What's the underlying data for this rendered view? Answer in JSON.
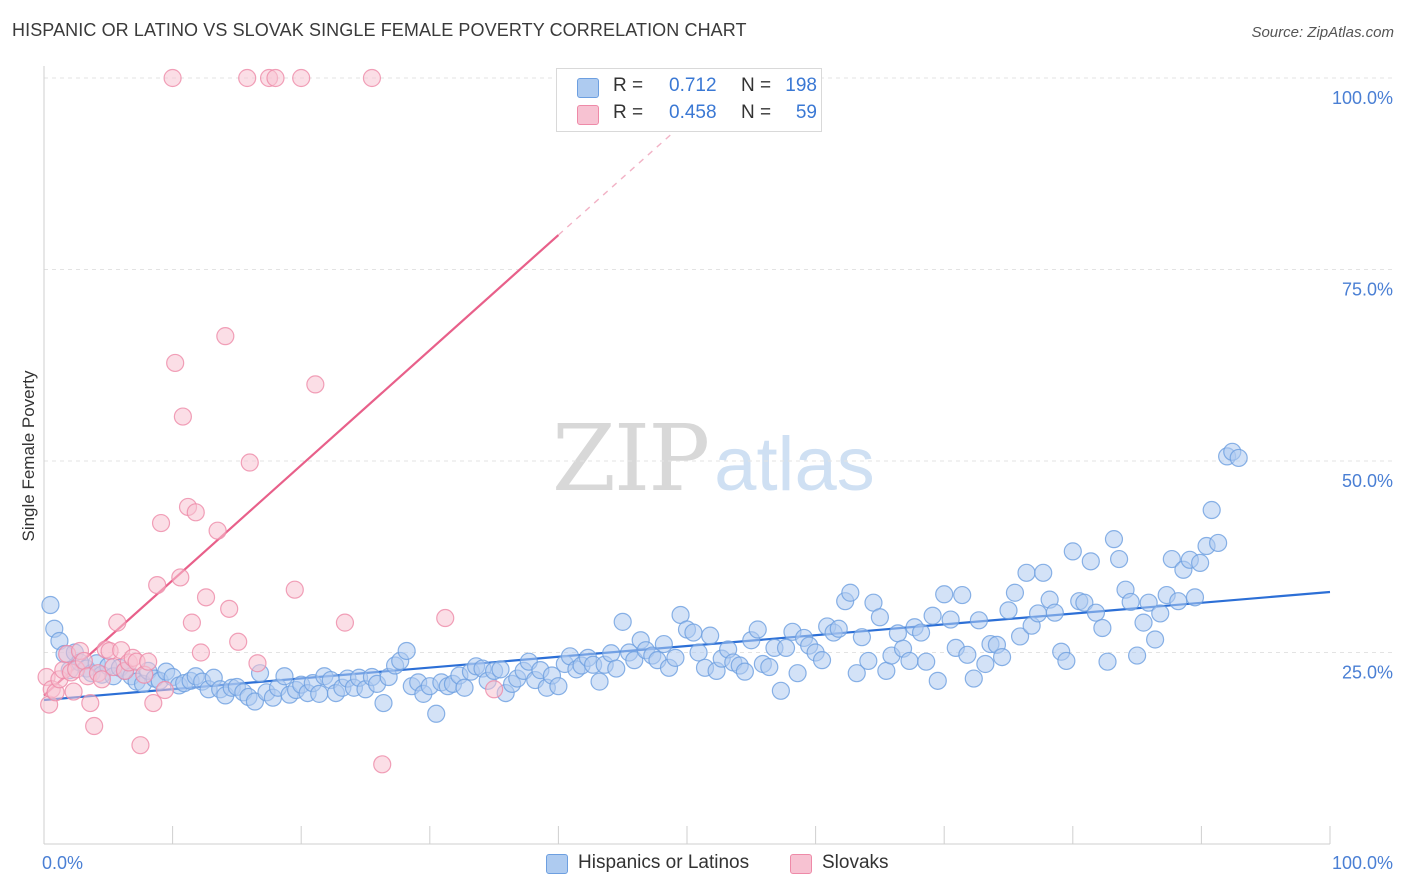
{
  "title": "HISPANIC OR LATINO VS SLOVAK SINGLE FEMALE POVERTY CORRELATION CHART",
  "source": "Source: ZipAtlas.com",
  "watermark": {
    "zip": "ZIP",
    "atlas": "atlas"
  },
  "colors": {
    "blue_fill": "#aecbf0",
    "blue_stroke": "#6d9fe0",
    "blue_line": "#2c6fd6",
    "pink_fill": "#f7c2d2",
    "pink_stroke": "#ee8aa8",
    "pink_line": "#e8608a",
    "grid": "#e3e3e3",
    "axis_text": "#4a7fd4"
  },
  "legend": {
    "rows": [
      {
        "r_label": "R =",
        "r_value": "0.712",
        "n_label": "N =",
        "n_value": "198",
        "color": "#aecbf0",
        "border": "#6d9fe0"
      },
      {
        "r_label": "R =",
        "r_value": "0.458",
        "n_label": "N =",
        "n_value": "59",
        "color": "#f7c2d2",
        "border": "#ee8aa8"
      }
    ]
  },
  "bottom_legend": [
    {
      "label": "Hispanics or Latinos",
      "color": "#aecbf0",
      "border": "#6d9fe0"
    },
    {
      "label": "Slovaks",
      "color": "#f7c2d2",
      "border": "#ee8aa8"
    }
  ],
  "chart_data": {
    "type": "scatter",
    "title": "HISPANIC OR LATINO VS SLOVAK SINGLE FEMALE POVERTY CORRELATION CHART",
    "xlabel": "",
    "ylabel": "Single Female Poverty",
    "xlim": [
      0,
      100
    ],
    "ylim": [
      0,
      100
    ],
    "x_tick_labels": [
      {
        "value": 0,
        "label": "0.0%"
      },
      {
        "value": 100,
        "label": "100.0%"
      }
    ],
    "y_tick_labels": [
      {
        "value": 25,
        "label": "25.0%"
      },
      {
        "value": 50,
        "label": "50.0%"
      },
      {
        "value": 75,
        "label": "75.0%"
      },
      {
        "value": 100,
        "label": "100.0%"
      }
    ],
    "grid": true,
    "legend_position": "top-center",
    "series": [
      {
        "name": "Hispanics or Latinos",
        "color": "#aecbf0",
        "trend": {
          "x": [
            0,
            100
          ],
          "y": [
            18.8,
            32.9
          ]
        },
        "points": [
          [
            0.5,
            31.2
          ],
          [
            0.8,
            28.1
          ],
          [
            1.2,
            26.5
          ],
          [
            1.6,
            24.8
          ],
          [
            2.0,
            22.7
          ],
          [
            2.4,
            25.0
          ],
          [
            2.8,
            23.7
          ],
          [
            3.3,
            22.9
          ],
          [
            3.7,
            22.3
          ],
          [
            4.1,
            23.6
          ],
          [
            4.5,
            22.1
          ],
          [
            5.0,
            23.2
          ],
          [
            5.4,
            21.9
          ],
          [
            5.9,
            23.0
          ],
          [
            6.3,
            22.6
          ],
          [
            6.8,
            21.9
          ],
          [
            7.2,
            21.2
          ],
          [
            7.7,
            20.9
          ],
          [
            8.1,
            22.6
          ],
          [
            8.6,
            21.6
          ],
          [
            9.0,
            21.3
          ],
          [
            9.5,
            22.5
          ],
          [
            10.0,
            21.8
          ],
          [
            10.5,
            20.7
          ],
          [
            10.9,
            21.0
          ],
          [
            11.4,
            21.3
          ],
          [
            11.8,
            21.9
          ],
          [
            12.3,
            21.2
          ],
          [
            12.8,
            20.2
          ],
          [
            13.2,
            21.7
          ],
          [
            13.7,
            20.2
          ],
          [
            14.1,
            19.4
          ],
          [
            14.6,
            20.4
          ],
          [
            15.0,
            20.5
          ],
          [
            15.5,
            19.8
          ],
          [
            15.9,
            19.2
          ],
          [
            16.4,
            18.6
          ],
          [
            16.8,
            22.3
          ],
          [
            17.3,
            19.8
          ],
          [
            17.8,
            19.1
          ],
          [
            18.2,
            20.4
          ],
          [
            18.7,
            21.9
          ],
          [
            19.1,
            19.5
          ],
          [
            19.6,
            20.1
          ],
          [
            20.0,
            20.8
          ],
          [
            20.5,
            19.7
          ],
          [
            20.9,
            21.0
          ],
          [
            21.4,
            19.6
          ],
          [
            21.8,
            21.9
          ],
          [
            22.3,
            21.4
          ],
          [
            22.7,
            19.7
          ],
          [
            23.2,
            20.4
          ],
          [
            23.6,
            21.6
          ],
          [
            24.1,
            20.4
          ],
          [
            24.5,
            21.7
          ],
          [
            25.0,
            20.2
          ],
          [
            25.5,
            21.8
          ],
          [
            25.9,
            20.9
          ],
          [
            26.4,
            18.4
          ],
          [
            26.8,
            21.8
          ],
          [
            27.3,
            23.3
          ],
          [
            27.7,
            23.9
          ],
          [
            28.2,
            25.2
          ],
          [
            28.6,
            20.6
          ],
          [
            29.1,
            21.1
          ],
          [
            29.5,
            19.6
          ],
          [
            30.0,
            20.6
          ],
          [
            30.5,
            17.0
          ],
          [
            30.9,
            21.1
          ],
          [
            31.4,
            20.6
          ],
          [
            31.8,
            20.9
          ],
          [
            32.3,
            22.0
          ],
          [
            32.7,
            20.4
          ],
          [
            33.2,
            22.5
          ],
          [
            33.6,
            23.2
          ],
          [
            34.1,
            22.9
          ],
          [
            34.5,
            21.3
          ],
          [
            35.0,
            22.6
          ],
          [
            35.5,
            22.8
          ],
          [
            35.9,
            19.7
          ],
          [
            36.4,
            20.9
          ],
          [
            36.8,
            21.6
          ],
          [
            37.3,
            22.6
          ],
          [
            37.7,
            23.8
          ],
          [
            38.2,
            21.4
          ],
          [
            38.6,
            22.7
          ],
          [
            39.1,
            20.4
          ],
          [
            39.5,
            22.0
          ],
          [
            40.0,
            20.6
          ],
          [
            40.5,
            23.5
          ],
          [
            40.9,
            24.5
          ],
          [
            41.4,
            22.8
          ],
          [
            41.8,
            23.3
          ],
          [
            42.3,
            24.3
          ],
          [
            42.7,
            23.4
          ],
          [
            43.2,
            21.2
          ],
          [
            43.6,
            23.4
          ],
          [
            44.1,
            24.9
          ],
          [
            44.5,
            22.9
          ],
          [
            45.0,
            29.0
          ],
          [
            45.5,
            25.0
          ],
          [
            45.9,
            24.0
          ],
          [
            46.4,
            26.6
          ],
          [
            46.8,
            25.3
          ],
          [
            47.3,
            24.6
          ],
          [
            47.7,
            24.0
          ],
          [
            48.2,
            26.1
          ],
          [
            48.6,
            23.0
          ],
          [
            49.1,
            24.3
          ],
          [
            49.5,
            29.9
          ],
          [
            50.0,
            28.0
          ],
          [
            50.5,
            27.6
          ],
          [
            50.9,
            25.0
          ],
          [
            51.4,
            23.0
          ],
          [
            51.8,
            27.2
          ],
          [
            52.3,
            22.6
          ],
          [
            52.7,
            24.2
          ],
          [
            53.2,
            25.4
          ],
          [
            53.6,
            23.7
          ],
          [
            54.1,
            23.3
          ],
          [
            54.5,
            22.5
          ],
          [
            55.0,
            26.6
          ],
          [
            55.5,
            28.0
          ],
          [
            55.9,
            23.5
          ],
          [
            56.4,
            23.1
          ],
          [
            56.8,
            25.6
          ],
          [
            57.3,
            20.0
          ],
          [
            57.7,
            25.6
          ],
          [
            58.2,
            27.7
          ],
          [
            58.6,
            22.3
          ],
          [
            59.1,
            26.9
          ],
          [
            59.5,
            25.9
          ],
          [
            60.0,
            25.0
          ],
          [
            60.5,
            24.0
          ],
          [
            60.9,
            28.4
          ],
          [
            61.4,
            27.6
          ],
          [
            61.8,
            28.1
          ],
          [
            62.3,
            31.7
          ],
          [
            62.7,
            32.8
          ],
          [
            63.2,
            22.3
          ],
          [
            63.6,
            27.0
          ],
          [
            64.1,
            23.9
          ],
          [
            64.5,
            31.5
          ],
          [
            65.0,
            29.6
          ],
          [
            65.5,
            22.6
          ],
          [
            65.9,
            24.6
          ],
          [
            66.4,
            27.5
          ],
          [
            66.8,
            25.5
          ],
          [
            67.3,
            23.9
          ],
          [
            67.7,
            28.3
          ],
          [
            68.2,
            27.6
          ],
          [
            68.6,
            23.8
          ],
          [
            69.1,
            29.8
          ],
          [
            69.5,
            21.3
          ],
          [
            70.0,
            32.6
          ],
          [
            70.5,
            29.3
          ],
          [
            70.9,
            25.6
          ],
          [
            71.4,
            32.5
          ],
          [
            71.8,
            24.7
          ],
          [
            72.3,
            21.6
          ],
          [
            72.7,
            29.2
          ],
          [
            73.2,
            23.5
          ],
          [
            73.6,
            26.1
          ],
          [
            74.1,
            26.0
          ],
          [
            74.5,
            24.4
          ],
          [
            75.0,
            30.5
          ],
          [
            75.5,
            32.8
          ],
          [
            75.9,
            27.1
          ],
          [
            76.4,
            35.4
          ],
          [
            76.8,
            28.5
          ],
          [
            77.3,
            30.1
          ],
          [
            77.7,
            35.4
          ],
          [
            78.2,
            31.9
          ],
          [
            78.6,
            30.2
          ],
          [
            79.1,
            25.1
          ],
          [
            79.5,
            23.9
          ],
          [
            80.0,
            38.2
          ],
          [
            80.5,
            31.7
          ],
          [
            80.9,
            31.5
          ],
          [
            81.4,
            36.9
          ],
          [
            81.8,
            30.2
          ],
          [
            82.3,
            28.2
          ],
          [
            82.7,
            23.8
          ],
          [
            83.2,
            39.8
          ],
          [
            83.6,
            37.2
          ],
          [
            84.1,
            33.2
          ],
          [
            84.5,
            31.6
          ],
          [
            85.0,
            24.6
          ],
          [
            85.5,
            28.9
          ],
          [
            85.9,
            31.5
          ],
          [
            86.4,
            26.7
          ],
          [
            86.8,
            30.1
          ],
          [
            87.3,
            32.5
          ],
          [
            87.7,
            37.2
          ],
          [
            88.2,
            31.7
          ],
          [
            88.6,
            35.8
          ],
          [
            89.1,
            37.1
          ],
          [
            89.5,
            32.2
          ],
          [
            89.9,
            36.7
          ],
          [
            90.4,
            38.9
          ],
          [
            90.8,
            43.6
          ],
          [
            91.3,
            39.3
          ],
          [
            92.0,
            50.6
          ],
          [
            92.4,
            51.2
          ],
          [
            92.9,
            50.4
          ]
        ]
      },
      {
        "name": "Slovaks",
        "color": "#f7c2d2",
        "trend": {
          "x": [
            0,
            40
          ],
          "y": [
            19.4,
            79.5
          ]
        },
        "trend_dashed": {
          "x": [
            40,
            50
          ],
          "y": [
            79.5,
            94.5
          ]
        },
        "points": [
          [
            0.2,
            21.8
          ],
          [
            0.4,
            18.2
          ],
          [
            0.6,
            20.2
          ],
          [
            0.9,
            19.8
          ],
          [
            1.2,
            21.5
          ],
          [
            1.5,
            22.7
          ],
          [
            1.8,
            24.8
          ],
          [
            2.1,
            22.4
          ],
          [
            2.3,
            19.9
          ],
          [
            2.5,
            22.8
          ],
          [
            2.8,
            25.2
          ],
          [
            3.1,
            23.9
          ],
          [
            3.4,
            21.9
          ],
          [
            3.6,
            18.4
          ],
          [
            3.9,
            15.4
          ],
          [
            4.2,
            22.3
          ],
          [
            4.5,
            21.5
          ],
          [
            4.8,
            25.4
          ],
          [
            5.1,
            25.2
          ],
          [
            5.4,
            23.1
          ],
          [
            5.7,
            28.9
          ],
          [
            6.0,
            25.3
          ],
          [
            6.3,
            22.6
          ],
          [
            6.6,
            23.7
          ],
          [
            6.9,
            24.3
          ],
          [
            7.2,
            23.8
          ],
          [
            7.5,
            12.9
          ],
          [
            7.8,
            22.1
          ],
          [
            8.1,
            23.8
          ],
          [
            8.5,
            18.4
          ],
          [
            8.8,
            33.8
          ],
          [
            9.1,
            41.9
          ],
          [
            9.4,
            20.1
          ],
          [
            10.0,
            100.0
          ],
          [
            10.2,
            62.8
          ],
          [
            10.6,
            34.8
          ],
          [
            10.8,
            55.8
          ],
          [
            11.2,
            44.0
          ],
          [
            11.5,
            28.9
          ],
          [
            11.8,
            43.3
          ],
          [
            12.2,
            25.0
          ],
          [
            12.6,
            32.2
          ],
          [
            13.5,
            40.9
          ],
          [
            14.1,
            66.3
          ],
          [
            14.4,
            30.7
          ],
          [
            15.1,
            26.4
          ],
          [
            15.8,
            100.0
          ],
          [
            16.0,
            49.8
          ],
          [
            16.6,
            23.6
          ],
          [
            17.5,
            100.0
          ],
          [
            18.0,
            100.0
          ],
          [
            19.5,
            33.2
          ],
          [
            20.0,
            100.0
          ],
          [
            21.1,
            60.0
          ],
          [
            23.4,
            28.9
          ],
          [
            25.5,
            100.0
          ],
          [
            26.3,
            10.4
          ],
          [
            31.2,
            29.5
          ],
          [
            35.0,
            20.2
          ]
        ]
      }
    ]
  }
}
